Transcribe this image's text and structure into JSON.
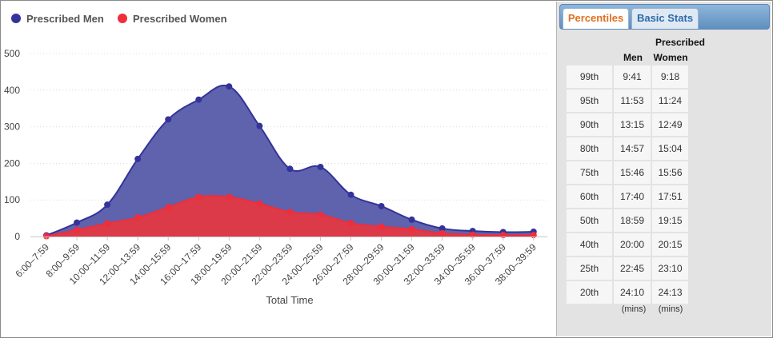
{
  "chart_data": {
    "type": "area",
    "categories": [
      "6:00–7:59",
      "8:00–9:59",
      "10:00–11:59",
      "12:00–13:59",
      "14:00–15:59",
      "16:00–17:59",
      "18:00–19:59",
      "20:00–21:59",
      "22:00–23:59",
      "24:00–25:59",
      "26:00–27:59",
      "28:00–29:59",
      "30:00–31:59",
      "32:00–33:59",
      "34:00–35:59",
      "36:00–37:59",
      "38:00–39:59"
    ],
    "series": [
      {
        "name": "Prescribed Men",
        "color": "#333399",
        "fill": "#5f62ad",
        "values": [
          3,
          38,
          87,
          212,
          320,
          374,
          410,
          302,
          185,
          190,
          114,
          83,
          46,
          22,
          15,
          12,
          13
        ]
      },
      {
        "name": "Prescribed Women",
        "color": "#ee2e3a",
        "fill": "#dc3a48",
        "values": [
          1,
          18,
          36,
          52,
          80,
          108,
          108,
          90,
          67,
          60,
          37,
          27,
          20,
          9,
          5,
          4,
          4
        ]
      }
    ],
    "yticks": [
      0,
      100,
      200,
      300,
      400,
      500
    ],
    "ylim": [
      0,
      500
    ],
    "xlabel": "Total Time",
    "ylabel": "",
    "grid": true,
    "legend": "top-left"
  },
  "panel": {
    "tabs": [
      {
        "label": "Percentiles",
        "active": true
      },
      {
        "label": "Basic Stats",
        "active": false
      }
    ],
    "group_header": "Prescribed",
    "col_men": "Men",
    "col_women": "Women",
    "rows": [
      {
        "pct": "99th",
        "men": "9:41",
        "women": "9:18"
      },
      {
        "pct": "95th",
        "men": "11:53",
        "women": "11:24"
      },
      {
        "pct": "90th",
        "men": "13:15",
        "women": "12:49"
      },
      {
        "pct": "80th",
        "men": "14:57",
        "women": "15:04"
      },
      {
        "pct": "75th",
        "men": "15:46",
        "women": "15:56"
      },
      {
        "pct": "60th",
        "men": "17:40",
        "women": "17:51"
      },
      {
        "pct": "50th",
        "men": "18:59",
        "women": "19:15"
      },
      {
        "pct": "40th",
        "men": "20:00",
        "women": "20:15"
      },
      {
        "pct": "25th",
        "men": "22:45",
        "women": "23:10"
      },
      {
        "pct": "20th",
        "men": "24:10",
        "women": "24:13"
      }
    ],
    "units_men": "(mins)",
    "units_women": "(mins)"
  }
}
